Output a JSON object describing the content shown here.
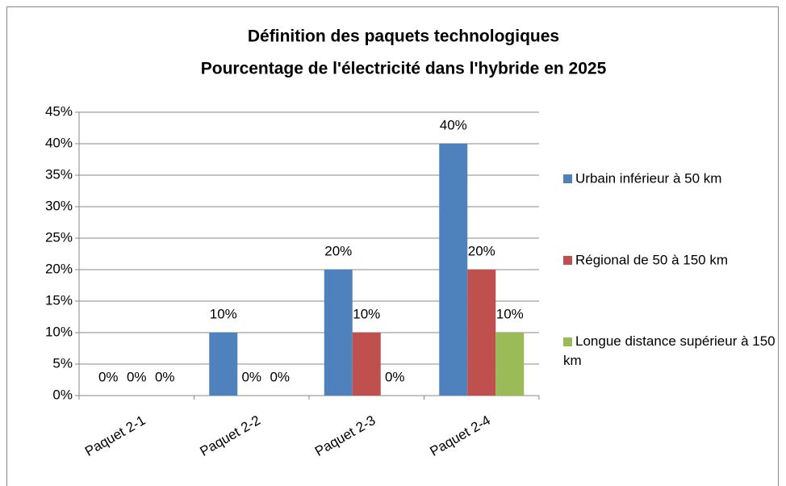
{
  "chart_data": {
    "type": "bar",
    "title": "Définition des paquets technologiques",
    "subtitle": "Pourcentage de l'électricité dans l'hybride en 2025",
    "categories": [
      "Paquet 2-1",
      "Paquet 2-2",
      "Paquet 2-3",
      "Paquet 2-4"
    ],
    "series": [
      {
        "name": "Urbain inférieur à 50 km",
        "color": "#4f81bd",
        "values": [
          0,
          10,
          20,
          40
        ],
        "value_labels": [
          "0%",
          "10%",
          "20%",
          "40%"
        ]
      },
      {
        "name": "Régional de 50 à 150 km",
        "color": "#c0504d",
        "values": [
          0,
          0,
          10,
          20
        ],
        "value_labels": [
          "0%",
          "0%",
          "10%",
          "20%"
        ]
      },
      {
        "name": "Longue distance supérieur à 150 km",
        "color": "#9bbb59",
        "values": [
          0,
          0,
          0,
          10
        ],
        "value_labels": [
          "0%",
          "0%",
          "0%",
          "10%"
        ]
      }
    ],
    "ylim": [
      0,
      45
    ],
    "yticks": [
      {
        "value": 0,
        "label": "0%"
      },
      {
        "value": 5,
        "label": "5%"
      },
      {
        "value": 10,
        "label": "10%"
      },
      {
        "value": 15,
        "label": "15%"
      },
      {
        "value": 20,
        "label": "20%"
      },
      {
        "value": 25,
        "label": "25%"
      },
      {
        "value": 30,
        "label": "30%"
      },
      {
        "value": 35,
        "label": "35%"
      },
      {
        "value": 40,
        "label": "40%"
      },
      {
        "value": 45,
        "label": "45%"
      }
    ],
    "grid": true,
    "legend": "right"
  }
}
